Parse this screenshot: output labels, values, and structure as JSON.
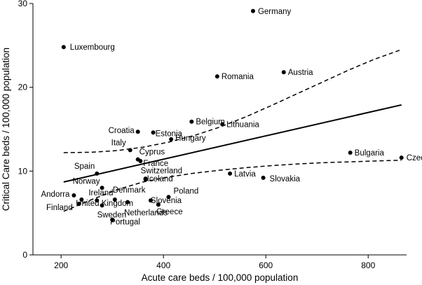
{
  "chart_data": {
    "type": "scatter",
    "xlabel": "Acute care beds / 100,000 population",
    "ylabel": "Critical Care beds / 100,000 population",
    "xlim": [
      145,
      875
    ],
    "ylim": [
      0,
      30
    ],
    "xticks": [
      200,
      400,
      600,
      800
    ],
    "yticks": [
      0,
      10,
      20,
      30
    ],
    "grid": false,
    "points": [
      {
        "label": "Germany",
        "x": 575,
        "y": 29.1
      },
      {
        "label": "Luxembourg",
        "x": 205,
        "y": 24.8
      },
      {
        "label": "Austria",
        "x": 635,
        "y": 21.8
      },
      {
        "label": "Romania",
        "x": 505,
        "y": 21.3
      },
      {
        "label": "Belgium",
        "x": 455,
        "y": 15.9
      },
      {
        "label": "Lithuania",
        "x": 515,
        "y": 15.6
      },
      {
        "label": "Croatia",
        "x": 350,
        "y": 14.7
      },
      {
        "label": "Estonia",
        "x": 380,
        "y": 14.6
      },
      {
        "label": "Hungary",
        "x": 415,
        "y": 13.8
      },
      {
        "label": "Italy",
        "x": 335,
        "y": 12.5
      },
      {
        "label": "Bulgaria",
        "x": 765,
        "y": 12.2
      },
      {
        "label": "Czech",
        "x": 865,
        "y": 11.6
      },
      {
        "label": "Cyprus",
        "x": 350,
        "y": 11.4
      },
      {
        "label": "France",
        "x": 355,
        "y": 11.2
      },
      {
        "label": "Spain",
        "x": 270,
        "y": 9.7
      },
      {
        "label": "Latvia",
        "x": 530,
        "y": 9.7
      },
      {
        "label": "Slovakia",
        "x": 595,
        "y": 9.2
      },
      {
        "label": "Iceland",
        "x": 365,
        "y": 9.1
      },
      {
        "label": "Switzerland",
        "x": 365,
        "y": 9.0
      },
      {
        "label": "Norway",
        "x": 280,
        "y": 8.0
      },
      {
        "label": "Andorra",
        "x": 225,
        "y": 7.1
      },
      {
        "label": "Poland",
        "x": 410,
        "y": 6.9
      },
      {
        "label": "Ireland",
        "x": 240,
        "y": 6.6
      },
      {
        "label": "Denmark",
        "x": 305,
        "y": 6.6
      },
      {
        "label": "United Kingdom",
        "x": 270,
        "y": 6.5
      },
      {
        "label": "Slovenia",
        "x": 375,
        "y": 6.5
      },
      {
        "label": "Finland",
        "x": 235,
        "y": 6.1
      },
      {
        "label": "Netherlands",
        "x": 330,
        "y": 6.3
      },
      {
        "label": "Greece",
        "x": 390,
        "y": 6.0
      },
      {
        "label": "Sweden",
        "x": 280,
        "y": 5.9
      },
      {
        "label": "Portugal",
        "x": 300,
        "y": 4.2
      }
    ],
    "fit_line": {
      "x": [
        205,
        865
      ],
      "y": [
        8.7,
        17.9
      ]
    },
    "ci_upper": {
      "x": [
        205,
        260,
        310,
        360,
        410,
        460,
        510,
        560,
        610,
        660,
        710,
        760,
        810,
        865
      ],
      "y": [
        12.2,
        12.25,
        12.45,
        12.85,
        13.45,
        14.25,
        15.25,
        16.45,
        17.8,
        19.2,
        20.6,
        22.0,
        23.3,
        24.5
      ]
    },
    "ci_lower": {
      "x": [
        205,
        260,
        310,
        360,
        410,
        460,
        510,
        560,
        610,
        660,
        710,
        760,
        810,
        865
      ],
      "y": [
        5.2,
        6.6,
        7.8,
        8.7,
        9.3,
        9.75,
        10.1,
        10.4,
        10.65,
        10.85,
        11.0,
        11.1,
        11.2,
        11.3
      ]
    }
  }
}
